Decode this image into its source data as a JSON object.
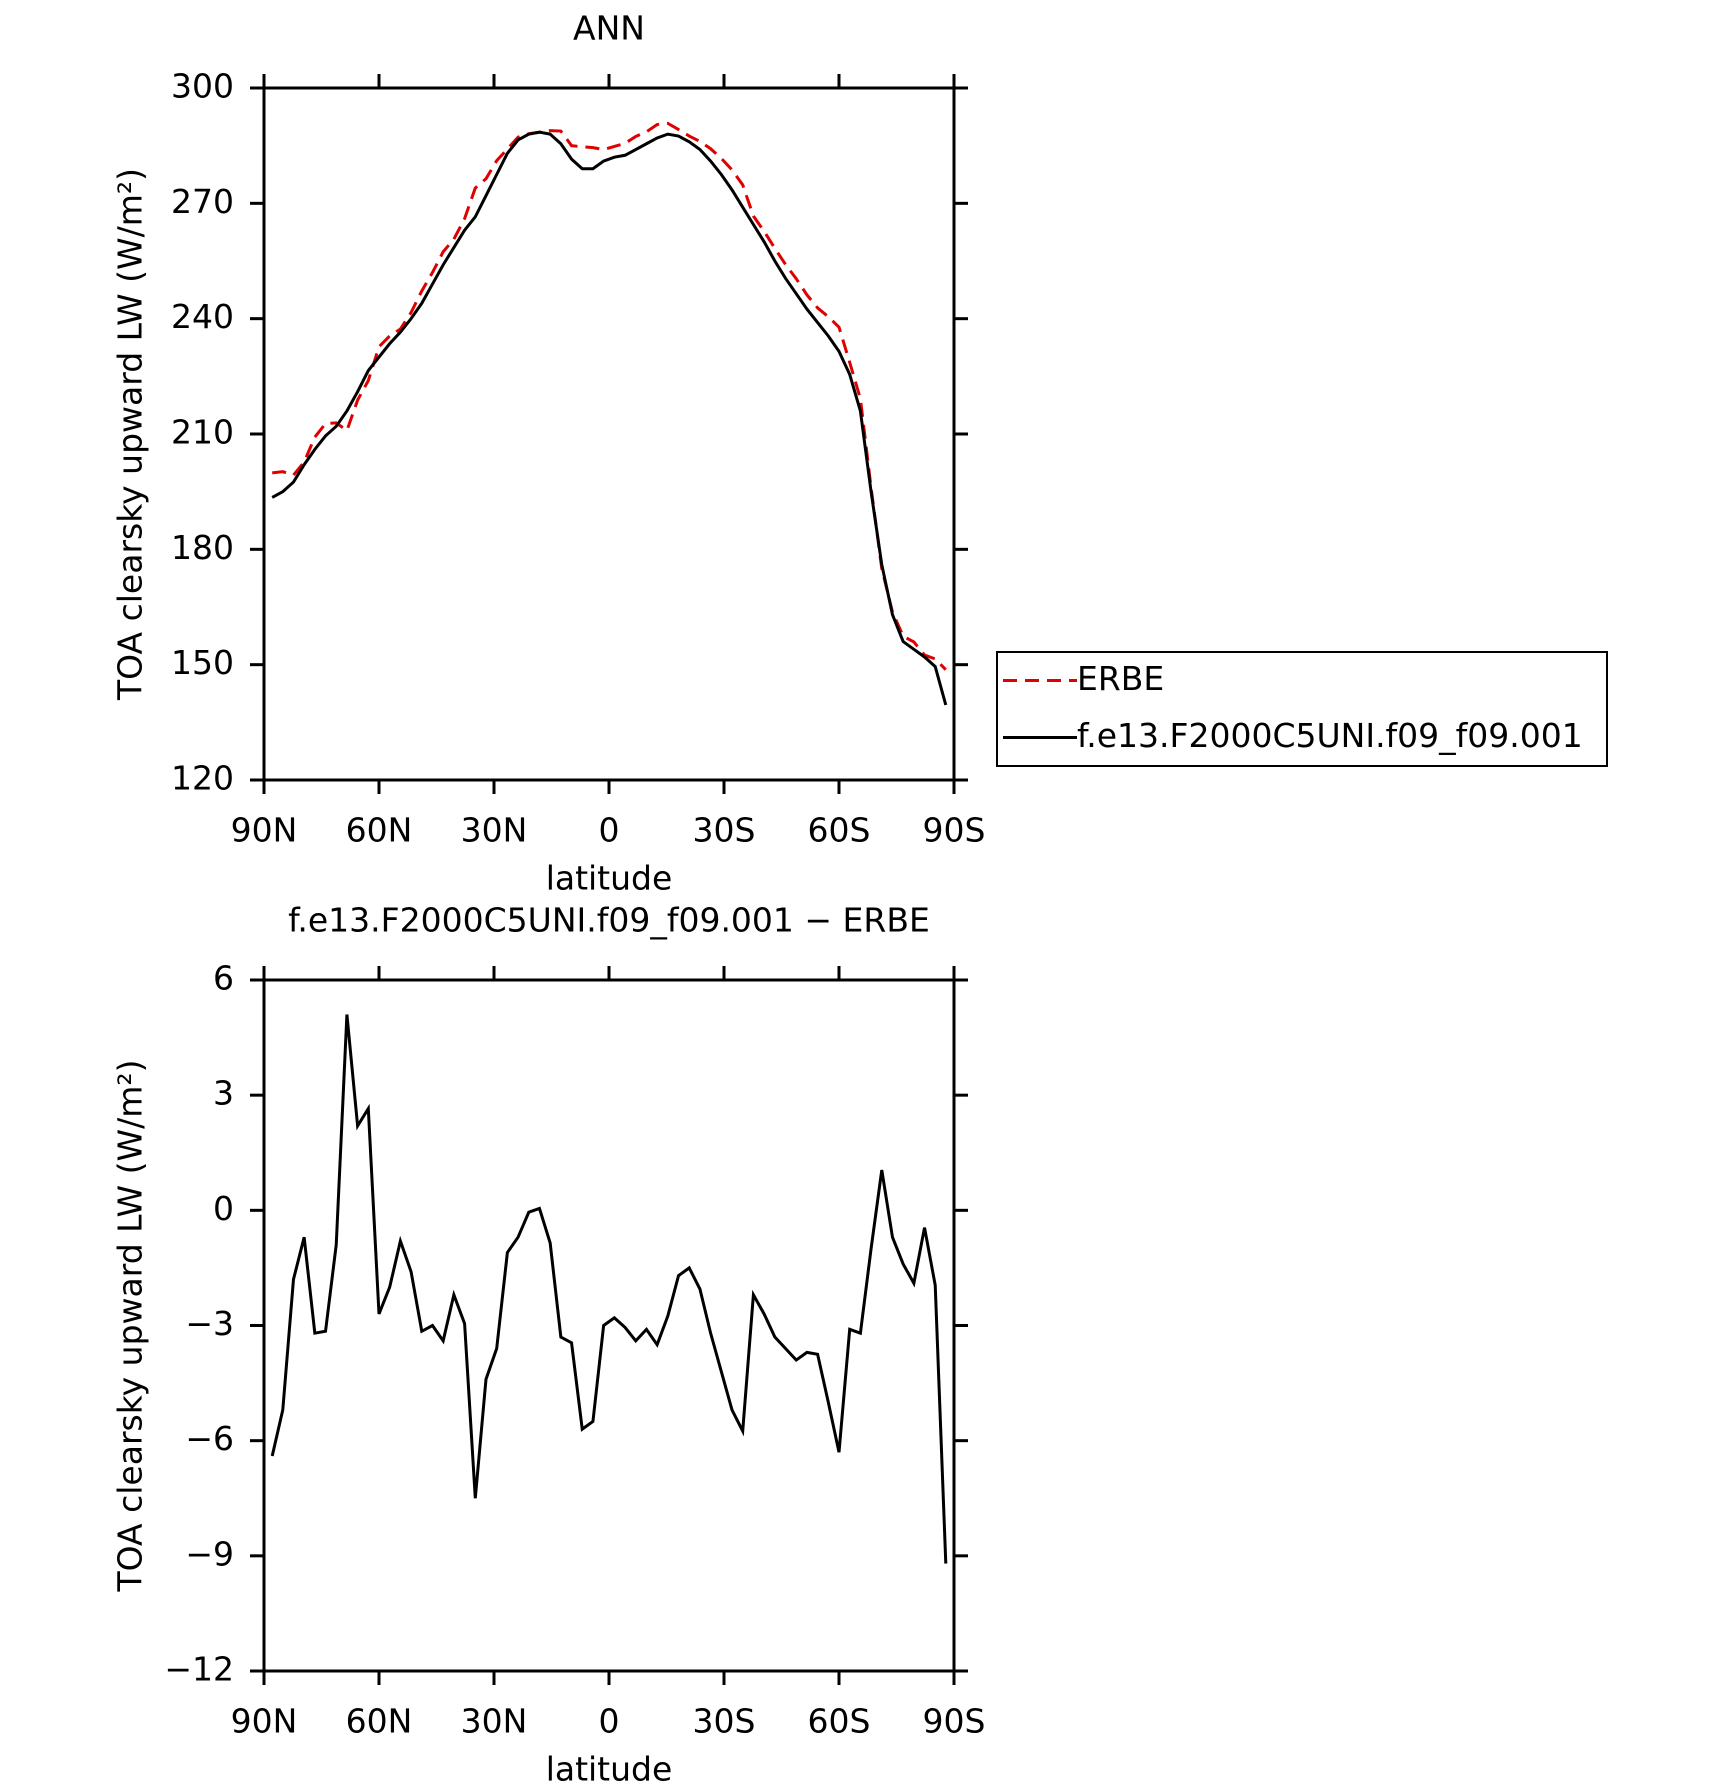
{
  "chart_data": [
    {
      "type": "line",
      "title": "ANN",
      "xlabel": "latitude",
      "ylabel": "TOA clearsky upward LW (W/m²)",
      "xlim": [
        90,
        -90
      ],
      "ylim": [
        120,
        300
      ],
      "xticks": [
        {
          "value": 90,
          "label": "90N"
        },
        {
          "value": 60,
          "label": "60N"
        },
        {
          "value": 30,
          "label": "30N"
        },
        0,
        {
          "value": -30,
          "label": "30S"
        },
        {
          "value": -60,
          "label": "60S"
        },
        {
          "value": -90,
          "label": "90S"
        }
      ],
      "yticks": [
        120,
        150,
        180,
        210,
        240,
        270,
        300
      ],
      "legend": "outside-right",
      "x": [
        87.86,
        85.1,
        82.31,
        79.53,
        76.74,
        73.95,
        71.16,
        68.37,
        65.58,
        62.79,
        60.0,
        57.21,
        54.42,
        51.63,
        48.84,
        46.05,
        43.26,
        40.47,
        37.67,
        34.88,
        32.09,
        29.3,
        26.51,
        23.72,
        20.93,
        18.14,
        15.35,
        12.56,
        9.77,
        6.98,
        4.19,
        1.4,
        -1.4,
        -4.19,
        -6.98,
        -9.77,
        -12.56,
        -15.35,
        -18.14,
        -20.93,
        -23.72,
        -26.51,
        -29.3,
        -32.09,
        -34.88,
        -37.67,
        -40.47,
        -43.26,
        -46.05,
        -48.84,
        -51.63,
        -54.42,
        -57.21,
        -60.0,
        -62.79,
        -65.58,
        -68.37,
        -71.16,
        -73.95,
        -76.74,
        -79.53,
        -82.31,
        -85.1,
        -87.86
      ],
      "series": [
        {
          "name": "ERBE",
          "color": "#e00000",
          "dashed": true,
          "values": [
            199.9,
            200.2,
            199.3,
            202.7,
            209.2,
            212.7,
            212.9,
            210.9,
            218.8,
            223.9,
            232.7,
            235.5,
            237.3,
            241.6,
            247.2,
            252,
            257.4,
            260.7,
            266,
            274,
            276.4,
            281.1,
            284.1,
            287.2,
            288.1,
            288.5,
            288.9,
            288.8,
            285,
            284.7,
            284.5,
            284,
            284.8,
            285.6,
            287.4,
            288.6,
            290.5,
            290.8,
            289.2,
            287.5,
            286.1,
            284.2,
            281.7,
            278.7,
            274.8,
            266.7,
            262.7,
            258.3,
            254.1,
            250.4,
            246.2,
            242.8,
            240.5,
            237.8,
            228.6,
            219.2,
            196,
            175,
            163.7,
            157.4,
            155.9,
            152.5,
            151.5,
            148.7
          ]
        },
        {
          "name": "f.e13.F2000C5UNI.f09_f09.001",
          "color": "#000000",
          "dashed": false,
          "values": [
            193.5,
            195,
            197.5,
            202,
            206,
            209.5,
            212,
            216,
            221,
            226.5,
            230,
            233.5,
            236.5,
            240,
            244,
            249,
            254,
            258.5,
            263,
            266.5,
            272,
            277.5,
            283,
            286.5,
            288,
            288.5,
            288,
            285.5,
            281.5,
            279,
            279,
            281,
            282,
            282.5,
            284,
            285.5,
            287,
            288,
            287.5,
            286,
            284,
            281,
            277.5,
            273.5,
            269,
            264.5,
            260,
            255,
            250.5,
            246.5,
            242.5,
            239,
            235.5,
            231.5,
            225.5,
            216,
            195,
            176,
            163,
            156,
            154,
            152,
            149.5,
            139.5
          ]
        }
      ]
    },
    {
      "type": "line",
      "title": "f.e13.F2000C5UNI.f09_f09.001 − ERBE",
      "xlabel": "latitude",
      "ylabel": "TOA clearsky upward LW (W/m²)",
      "xlim": [
        90,
        -90
      ],
      "ylim": [
        -12,
        6
      ],
      "xticks": [
        {
          "value": 90,
          "label": "90N"
        },
        {
          "value": 60,
          "label": "60N"
        },
        {
          "value": 30,
          "label": "30N"
        },
        0,
        {
          "value": -30,
          "label": "30S"
        },
        {
          "value": -60,
          "label": "60S"
        },
        {
          "value": -90,
          "label": "90S"
        }
      ],
      "yticks": [
        {
          "value": -12,
          "label": "−12"
        },
        {
          "value": -9,
          "label": "−9"
        },
        {
          "value": -6,
          "label": "−6"
        },
        {
          "value": -3,
          "label": "−3"
        },
        0,
        3,
        6
      ],
      "x": [
        87.86,
        85.1,
        82.31,
        79.53,
        76.74,
        73.95,
        71.16,
        68.37,
        65.58,
        62.79,
        60.0,
        57.21,
        54.42,
        51.63,
        48.84,
        46.05,
        43.26,
        40.47,
        37.67,
        34.88,
        32.09,
        29.3,
        26.51,
        23.72,
        20.93,
        18.14,
        15.35,
        12.56,
        9.77,
        6.98,
        4.19,
        1.4,
        -1.4,
        -4.19,
        -6.98,
        -9.77,
        -12.56,
        -15.35,
        -18.14,
        -20.93,
        -23.72,
        -26.51,
        -29.3,
        -32.09,
        -34.88,
        -37.67,
        -40.47,
        -43.26,
        -46.05,
        -48.84,
        -51.63,
        -54.42,
        -57.21,
        -60.0,
        -62.79,
        -65.58,
        -68.37,
        -71.16,
        -73.95,
        -76.74,
        -79.53,
        -82.31,
        -85.1,
        -87.86
      ],
      "series": [
        {
          "color": "#000000",
          "dashed": false,
          "values": [
            -6.4,
            -5.2,
            -1.8,
            -0.7,
            -3.2,
            -3.15,
            -0.9,
            5.1,
            2.2,
            2.65,
            -2.7,
            -2.0,
            -0.8,
            -1.6,
            -3.15,
            -3.0,
            -3.4,
            -2.2,
            -2.95,
            -7.5,
            -4.4,
            -3.6,
            -1.1,
            -0.7,
            -0.05,
            0.05,
            -0.85,
            -3.3,
            -3.45,
            -5.7,
            -5.5,
            -3.0,
            -2.8,
            -3.05,
            -3.4,
            -3.1,
            -3.5,
            -2.75,
            -1.7,
            -1.5,
            -2.05,
            -3.2,
            -4.2,
            -5.2,
            -5.75,
            -2.2,
            -2.7,
            -3.3,
            -3.6,
            -3.9,
            -3.7,
            -3.75,
            -5.0,
            -6.3,
            -3.1,
            -3.2,
            -1.0,
            1.05,
            -0.7,
            -1.4,
            -1.9,
            -0.45,
            -1.95,
            -9.2
          ]
        }
      ]
    }
  ]
}
